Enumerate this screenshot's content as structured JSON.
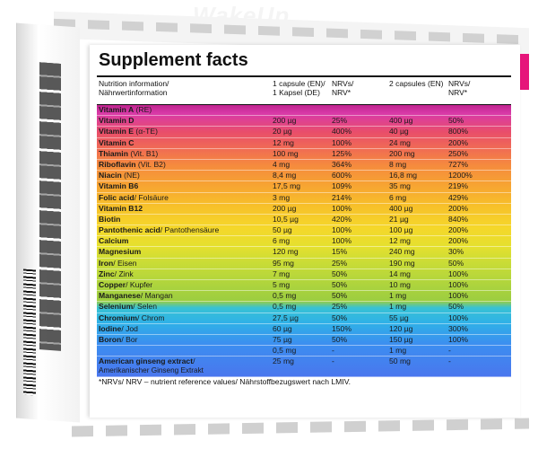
{
  "watermark": "WakeUp",
  "title": "Supplement facts",
  "header": {
    "col1": [
      "Nutrition information/",
      "Nährwertinformation"
    ],
    "col2": [
      "1 capsule (EN)/",
      "1 Kapsel (DE)"
    ],
    "col3": [
      "NRVs/",
      "NRV*"
    ],
    "col4": [
      "2 capsules (EN)"
    ],
    "col5": [
      "NRVs/",
      "NRV*"
    ]
  },
  "rows": [
    {
      "name": "Vitamin A",
      "note": " (RE)",
      "dose1": "",
      "nrv1": "",
      "dose2": "",
      "nrv2": ""
    },
    {
      "name": "Vitamin D",
      "note": "",
      "dose1": "200 µg",
      "nrv1": "25%",
      "dose2": "400 µg",
      "nrv2": "50%"
    },
    {
      "name": "Vitamin E",
      "note": " (α-TE)",
      "dose1": "20 µg",
      "nrv1": "400%",
      "dose2": "40 µg",
      "nrv2": "800%"
    },
    {
      "name": "Vitamin C",
      "note": "",
      "dose1": "12 mg",
      "nrv1": "100%",
      "dose2": "24 mg",
      "nrv2": "200%"
    },
    {
      "name": "Thiamin",
      "note": " (Vit. B1)",
      "dose1": "100 mg",
      "nrv1": "125%",
      "dose2": "200 mg",
      "nrv2": "250%"
    },
    {
      "name": "Riboflavin",
      "note": " (Vit. B2)",
      "dose1": "4 mg",
      "nrv1": "364%",
      "dose2": "8 mg",
      "nrv2": "727%"
    },
    {
      "name": "Niacin",
      "note": " (NE)",
      "dose1": "8,4 mg",
      "nrv1": "600%",
      "dose2": "16,8 mg",
      "nrv2": "1200%"
    },
    {
      "name": "Vitamin B6",
      "note": "",
      "dose1": "17,5 mg",
      "nrv1": "109%",
      "dose2": "35 mg",
      "nrv2": "219%"
    },
    {
      "name": "Folic acid",
      "note": "/ Folsäure",
      "dose1": "3 mg",
      "nrv1": "214%",
      "dose2": "6 mg",
      "nrv2": "429%"
    },
    {
      "name": "Vitamin B12",
      "note": "",
      "dose1": "200 µg",
      "nrv1": "100%",
      "dose2": "400 µg",
      "nrv2": "200%"
    },
    {
      "name": "Biotin",
      "note": "",
      "dose1": "10,5 µg",
      "nrv1": "420%",
      "dose2": "21 µg",
      "nrv2": "840%"
    },
    {
      "name": "Pantothenic acid",
      "note": "/ Pantothensäure",
      "dose1": "50 µg",
      "nrv1": "100%",
      "dose2": "100 µg",
      "nrv2": "200%"
    },
    {
      "name": "Calcium",
      "note": "",
      "dose1": "6 mg",
      "nrv1": "100%",
      "dose2": "12 mg",
      "nrv2": "200%"
    },
    {
      "name": "Magnesium",
      "note": "",
      "dose1": "120 mg",
      "nrv1": "15%",
      "dose2": "240 mg",
      "nrv2": "30%"
    },
    {
      "name": "Iron",
      "note": "/ Eisen",
      "dose1": "95 mg",
      "nrv1": "25%",
      "dose2": "190 mg",
      "nrv2": "50%"
    },
    {
      "name": "Zinc",
      "note": "/ Zink",
      "dose1": "7 mg",
      "nrv1": "50%",
      "dose2": "14 mg",
      "nrv2": "100%"
    },
    {
      "name": "Copper",
      "note": "/ Kupfer",
      "dose1": "5 mg",
      "nrv1": "50%",
      "dose2": "10 mg",
      "nrv2": "100%"
    },
    {
      "name": "Manganese",
      "note": "/ Mangan",
      "dose1": "0,5 mg",
      "nrv1": "50%",
      "dose2": "1 mg",
      "nrv2": "100%"
    },
    {
      "name": "Selenium",
      "note": "/ Selen",
      "dose1": "0,5 mg",
      "nrv1": "25%",
      "dose2": "1 mg",
      "nrv2": "50%"
    },
    {
      "name": "Chromium",
      "note": "/ Chrom",
      "dose1": "27,5 µg",
      "nrv1": "50%",
      "dose2": "55 µg",
      "nrv2": "100%"
    },
    {
      "name": "Iodine",
      "note": "/ Jod",
      "dose1": "60 µg",
      "nrv1": "150%",
      "dose2": "120 µg",
      "nrv2": "300%"
    },
    {
      "name": "Boron",
      "note": "/ Bor",
      "dose1": "75 µg",
      "nrv1": "50%",
      "dose2": "150 µg",
      "nrv2": "100%"
    },
    {
      "name": "",
      "note": "",
      "dose1": "0,5 mg",
      "nrv1": "-",
      "dose2": "1 mg",
      "nrv2": "-"
    },
    {
      "name": "American ginseng extract",
      "note": "/",
      "sub": "Amerikanischer Ginseng Extrakt",
      "dose1": "25 mg",
      "nrv1": "-",
      "dose2": "50 mg",
      "nrv2": "-"
    }
  ],
  "footnote": "*NRVs/ NRV – nutrient reference values/ Nährstoffbezugswert nach LMIV.",
  "colors": {
    "accent_pink": "#e6157a"
  }
}
